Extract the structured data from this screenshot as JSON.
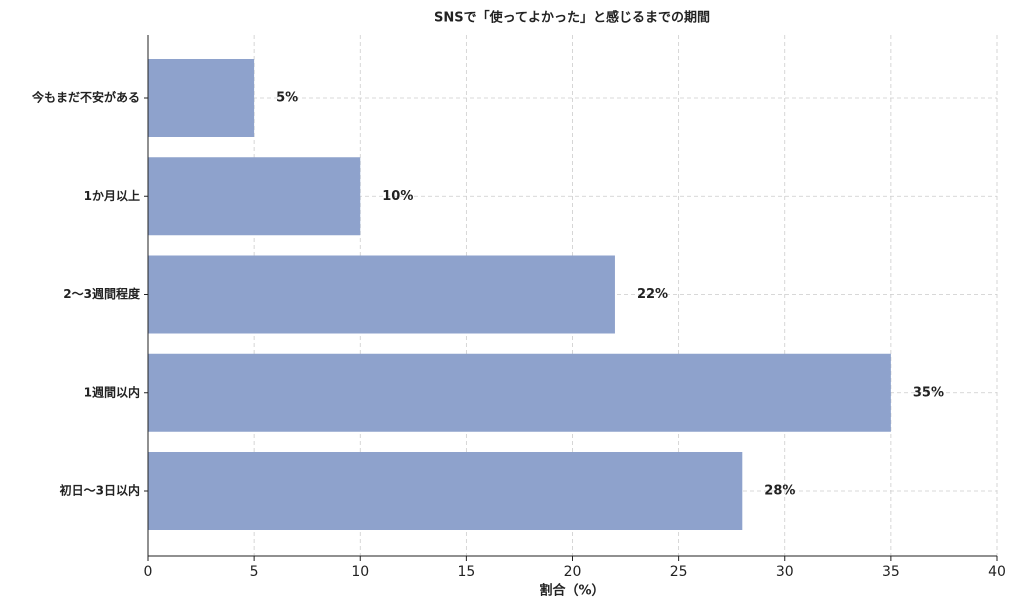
{
  "chart_data": {
    "type": "bar",
    "orientation": "horizontal",
    "title": "SNSで「使ってよかった」と感じるまでの期間",
    "x_label": "割合（%）",
    "categories": [
      "今もまだ不安がある",
      "1か月以上",
      "2〜3週間程度",
      "1週間以内",
      "初日〜3日以内"
    ],
    "values": [
      5,
      10,
      22,
      35,
      28
    ],
    "value_labels": [
      "5%",
      "10%",
      "22%",
      "35%",
      "28%"
    ],
    "color": "#8ea2cc",
    "xlim": [
      0,
      40
    ],
    "xticks": [
      0,
      5,
      10,
      15,
      20,
      25,
      30,
      35,
      40
    ],
    "grid": true
  }
}
